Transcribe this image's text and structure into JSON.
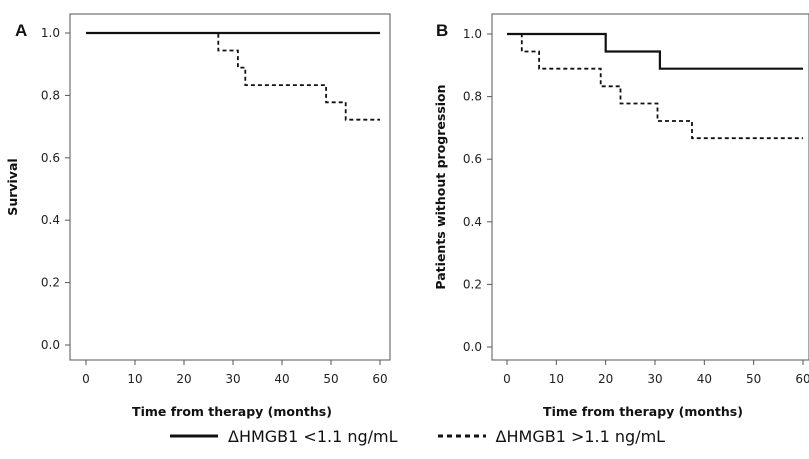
{
  "chart_data": [
    {
      "panel_label": "A",
      "type": "line",
      "step": true,
      "xlabel": "Time from therapy (months)",
      "ylabel": "Survival",
      "xlim": [
        0,
        60
      ],
      "ylim": [
        0,
        1
      ],
      "x_ticks": [
        "0",
        "10",
        "20",
        "30",
        "40",
        "50",
        "60"
      ],
      "y_ticks": [
        "0.0",
        "0.2",
        "0.4",
        "0.6",
        "0.8",
        "1.0"
      ],
      "grid": false,
      "series": [
        {
          "name": "ΔHMGB1 <1.1 ng/mL",
          "style": "solid",
          "points": [
            [
              0,
              1.0
            ],
            [
              60,
              1.0
            ]
          ]
        },
        {
          "name": "ΔHMGB1 >1.1 ng/mL",
          "style": "dashed",
          "points": [
            [
              0,
              1.0
            ],
            [
              27,
              0.944
            ],
            [
              31,
              0.889
            ],
            [
              32.5,
              0.833
            ],
            [
              49,
              0.778
            ],
            [
              53,
              0.722
            ],
            [
              60,
              0.722
            ]
          ]
        }
      ]
    },
    {
      "panel_label": "B",
      "type": "line",
      "step": true,
      "xlabel": "Time from therapy (months)",
      "ylabel": "Patients without progression",
      "xlim": [
        0,
        60
      ],
      "ylim": [
        0,
        1
      ],
      "x_ticks": [
        "0",
        "10",
        "20",
        "30",
        "40",
        "50",
        "60"
      ],
      "y_ticks": [
        "0.0",
        "0.2",
        "0.4",
        "0.6",
        "0.8",
        "1.0"
      ],
      "grid": false,
      "series": [
        {
          "name": "ΔHMGB1 <1.1 ng/mL",
          "style": "solid",
          "points": [
            [
              0,
              1.0
            ],
            [
              20,
              0.944
            ],
            [
              31,
              0.889
            ],
            [
              60,
              0.889
            ]
          ]
        },
        {
          "name": "ΔHMGB1 >1.1 ng/mL",
          "style": "dashed",
          "points": [
            [
              0,
              1.0
            ],
            [
              3,
              0.944
            ],
            [
              6.5,
              0.889
            ],
            [
              19,
              0.833
            ],
            [
              23,
              0.778
            ],
            [
              30.5,
              0.722
            ],
            [
              37.5,
              0.667
            ],
            [
              60,
              0.667
            ]
          ]
        }
      ]
    }
  ],
  "legend": [
    {
      "label": "ΔHMGB1 <1.1 ng/mL",
      "style": "solid"
    },
    {
      "label": "ΔHMGB1 >1.1 ng/mL",
      "style": "dashed"
    }
  ],
  "colors": {
    "line": "#111111",
    "axis": "#555555"
  }
}
